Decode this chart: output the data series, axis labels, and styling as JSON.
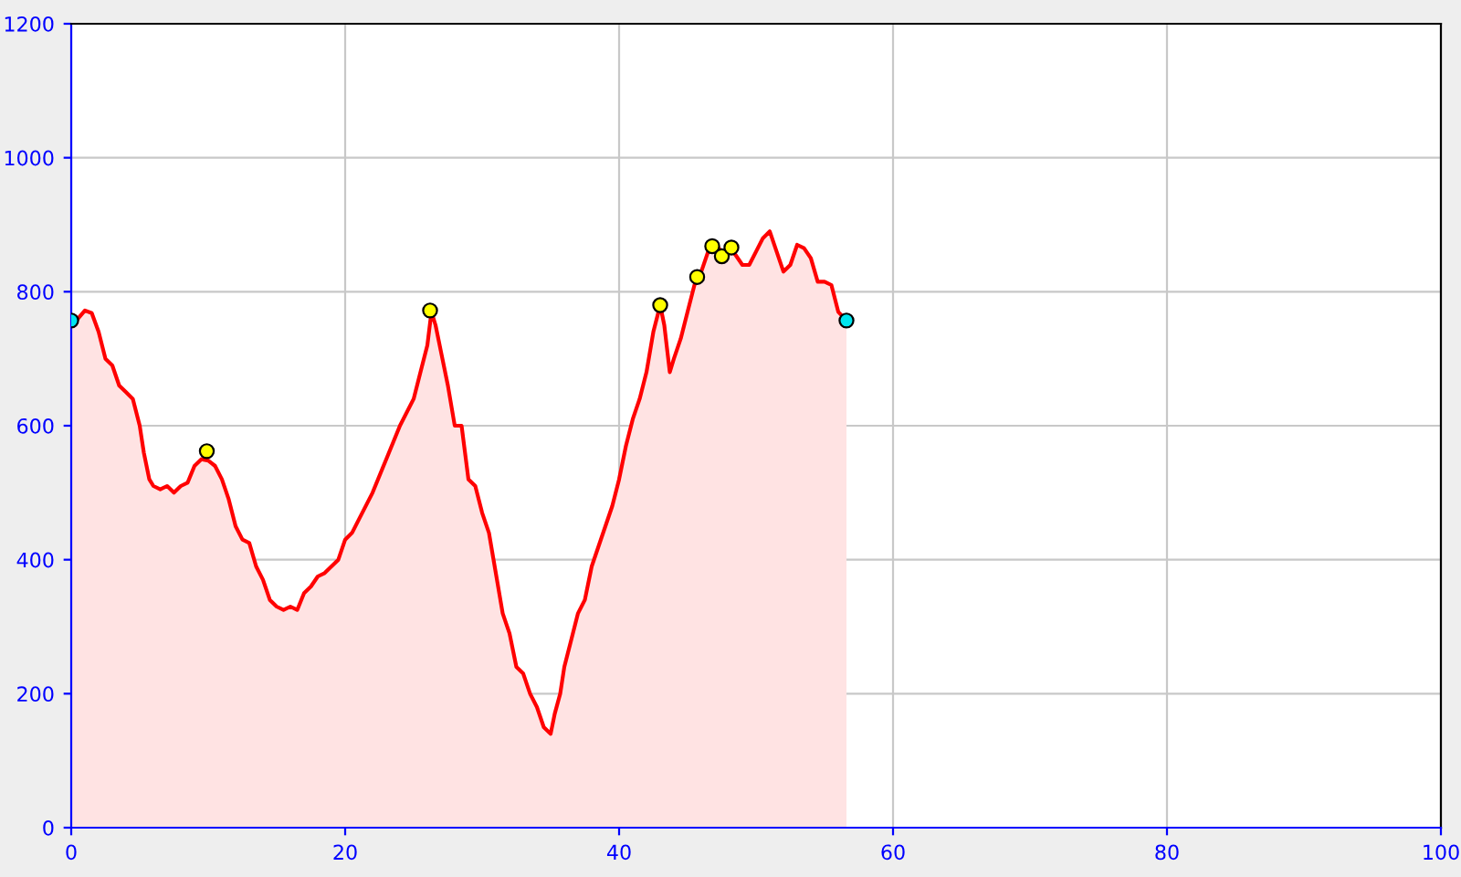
{
  "chart_data": {
    "type": "area",
    "xlim": [
      0,
      100
    ],
    "ylim": [
      0,
      1200
    ],
    "xticks": [
      0,
      20,
      40,
      60,
      80,
      100
    ],
    "yticks": [
      0,
      200,
      400,
      600,
      800,
      1000,
      1200
    ],
    "grid": true,
    "legend": false,
    "series": [
      {
        "color": "#ff0000",
        "x": [
          0,
          0.5,
          1,
          1.5,
          2,
          2.5,
          3,
          3.5,
          4,
          4.5,
          5,
          5.3,
          5.7,
          6,
          6.5,
          7,
          7.5,
          8,
          8.5,
          9,
          9.5,
          10,
          10.5,
          11,
          11.5,
          12,
          12.5,
          13,
          13.5,
          14,
          14.5,
          15,
          15.5,
          16,
          16.5,
          17,
          17.5,
          18,
          18.5,
          19,
          19.5,
          20,
          20.5,
          21,
          22,
          23,
          24,
          25,
          25.5,
          26,
          26.3,
          26.6,
          27,
          27.5,
          28,
          28.5,
          29,
          29.5,
          30,
          30.5,
          31,
          31.5,
          32,
          32.5,
          33,
          33.5,
          34,
          34.5,
          35,
          35.3,
          35.7,
          36,
          36.5,
          37,
          37.5,
          38,
          38.5,
          39,
          39.5,
          40,
          40.5,
          41,
          41.5,
          42,
          42.5,
          43,
          43.3,
          43.7,
          44,
          44.5,
          45,
          45.5,
          46,
          46.5,
          47,
          47.5,
          48,
          48.5,
          49,
          49.5,
          50,
          50.5,
          51,
          51.5,
          52,
          52.5,
          53,
          53.5,
          54,
          54.5,
          55,
          55.5,
          56,
          56.6
        ],
        "values": [
          750,
          760,
          772,
          768,
          740,
          700,
          690,
          660,
          650,
          640,
          600,
          560,
          520,
          510,
          505,
          510,
          500,
          510,
          515,
          540,
          550,
          548,
          540,
          520,
          490,
          450,
          430,
          425,
          390,
          370,
          340,
          330,
          325,
          330,
          325,
          350,
          360,
          375,
          380,
          390,
          400,
          430,
          440,
          460,
          500,
          550,
          600,
          640,
          680,
          720,
          770,
          750,
          710,
          660,
          600,
          600,
          520,
          510,
          470,
          440,
          380,
          320,
          290,
          240,
          230,
          200,
          180,
          150,
          140,
          170,
          200,
          240,
          280,
          320,
          340,
          390,
          420,
          450,
          480,
          520,
          570,
          610,
          640,
          680,
          740,
          780,
          750,
          680,
          700,
          730,
          770,
          810,
          830,
          860,
          870,
          860,
          865,
          855,
          840,
          840,
          860,
          880,
          890,
          860,
          830,
          840,
          870,
          865,
          850,
          815,
          815,
          810,
          770,
          757
        ]
      },
      {
        "type": "scatter",
        "color": "#ffff00",
        "marker": "circle",
        "x": [
          9.9,
          26.2,
          43,
          45.7,
          46.8,
          47.5,
          48.2
        ],
        "values": [
          562,
          772,
          780,
          822,
          868,
          853,
          866
        ]
      },
      {
        "type": "scatter",
        "color": "#00e5ee",
        "marker": "circle",
        "x": [
          0,
          56.6
        ],
        "values": [
          757,
          757
        ]
      }
    ]
  }
}
